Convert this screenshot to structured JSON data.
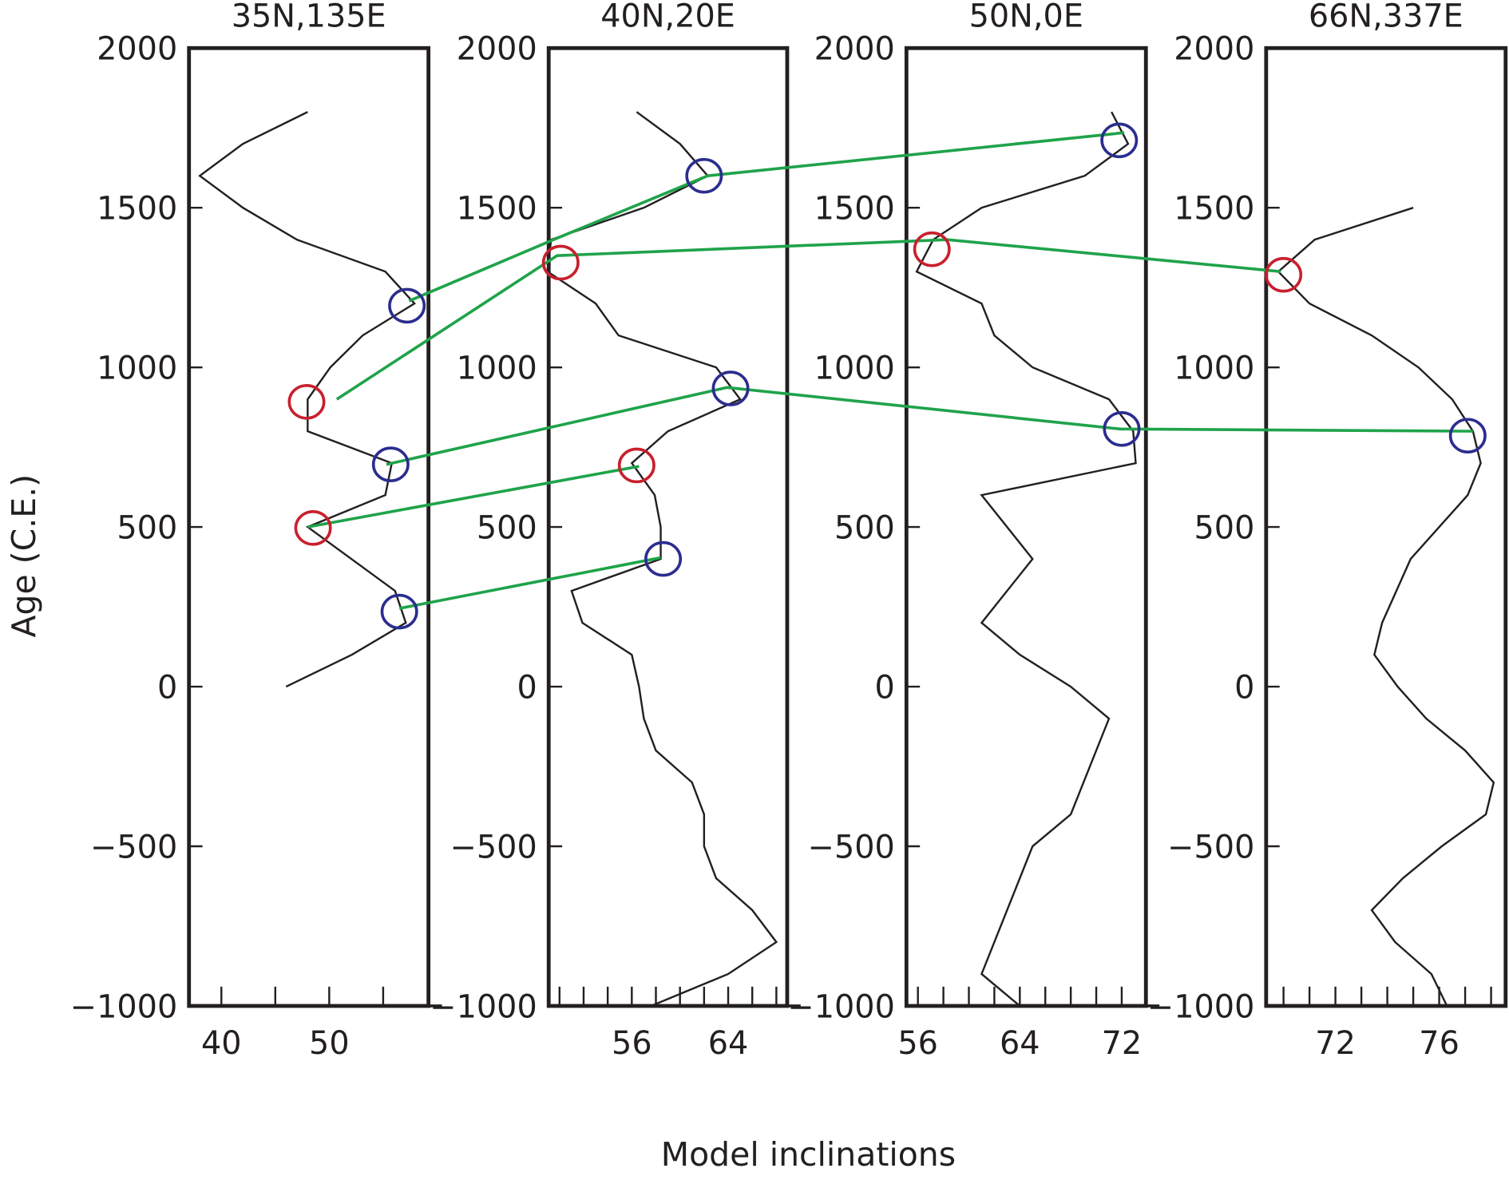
{
  "chart_data": {
    "type": "line",
    "ylabel": "Age (C.E.)",
    "xlabel": "Model inclinations",
    "colors": {
      "curve": "#231f20",
      "connector": "#1fa34a",
      "blue_circle": "#2b2d8f",
      "red_circle": "#c8202e"
    },
    "grid": false,
    "ylim": [
      -1000,
      2000
    ],
    "yticks": [
      2000,
      1500,
      1000,
      500,
      0,
      -500,
      -1000
    ],
    "ytick_labels": [
      "2000",
      "1500",
      "1000",
      "500",
      "0",
      "−500",
      "−1000"
    ],
    "panels": [
      {
        "title": "35N,135E",
        "xlim": [
          37,
          59.2
        ],
        "xticks_minor": [
          40,
          45,
          50,
          55
        ],
        "xtick_labels": [
          {
            "value": 40,
            "label": "40"
          },
          {
            "value": 50,
            "label": "50"
          }
        ],
        "curve": [
          [
            48,
            1800
          ],
          [
            42,
            1700
          ],
          [
            38,
            1600
          ],
          [
            42,
            1500
          ],
          [
            47,
            1400
          ],
          [
            55.2,
            1300
          ],
          [
            57.9,
            1200
          ],
          [
            53.1,
            1100
          ],
          [
            50.1,
            1000
          ],
          [
            48,
            900
          ],
          [
            48,
            800
          ],
          [
            55.8,
            700
          ],
          [
            55.2,
            600
          ],
          [
            48,
            500
          ],
          [
            56.1,
            300
          ],
          [
            57.1,
            200
          ],
          [
            52.1,
            100
          ],
          [
            46,
            0
          ]
        ],
        "blue_circles": [
          [
            57.2,
            1193
          ],
          [
            55.7,
            696
          ],
          [
            56.5,
            235
          ]
        ],
        "red_circles": [
          [
            47.9,
            892
          ],
          [
            48.5,
            497
          ]
        ]
      },
      {
        "title": "40N,20E",
        "xlim": [
          49.1,
          68.9
        ],
        "xticks_minor": [
          50,
          52,
          54,
          56,
          58,
          60,
          62,
          64,
          66,
          68
        ],
        "xtick_labels": [
          {
            "value": 56,
            "label": "56"
          },
          {
            "value": 64,
            "label": "64"
          }
        ],
        "curve": [
          [
            56.4,
            1800
          ],
          [
            60,
            1700
          ],
          [
            62.3,
            1600
          ],
          [
            57,
            1500
          ],
          [
            49.3,
            1400
          ],
          [
            49,
            1300
          ],
          [
            53,
            1200
          ],
          [
            54.9,
            1100
          ],
          [
            63,
            1000
          ],
          [
            65,
            900
          ],
          [
            59,
            800
          ],
          [
            56,
            700
          ],
          [
            57.9,
            600
          ],
          [
            58.4,
            500
          ],
          [
            58.4,
            400
          ],
          [
            51,
            300
          ],
          [
            51.9,
            200
          ],
          [
            56,
            100
          ],
          [
            56.6,
            0
          ],
          [
            57,
            -100
          ],
          [
            58,
            -200
          ],
          [
            61,
            -300
          ],
          [
            62,
            -400
          ],
          [
            62,
            -500
          ],
          [
            63,
            -600
          ],
          [
            66,
            -700
          ],
          [
            68,
            -800
          ],
          [
            64,
            -900
          ],
          [
            57.6,
            -1000
          ]
        ],
        "blue_circles": [
          [
            62,
            1600
          ],
          [
            64.2,
            934
          ],
          [
            58.6,
            400
          ]
        ],
        "red_circles": [
          [
            50.1,
            1328
          ],
          [
            56.4,
            693
          ]
        ]
      },
      {
        "title": "50N,0E",
        "xlim": [
          55.1,
          73.9
        ],
        "xticks_minor": [
          56,
          58,
          60,
          62,
          64,
          66,
          68,
          70,
          72
        ],
        "xtick_labels": [
          {
            "value": 56,
            "label": "56"
          },
          {
            "value": 64,
            "label": "64"
          },
          {
            "value": 72,
            "label": "72"
          }
        ],
        "curve": [
          [
            71.2,
            1800
          ],
          [
            72.5,
            1700
          ],
          [
            69.1,
            1600
          ],
          [
            61,
            1500
          ],
          [
            57.2,
            1400
          ],
          [
            55.9,
            1300
          ],
          [
            61,
            1200
          ],
          [
            62,
            1100
          ],
          [
            65,
            1000
          ],
          [
            71,
            900
          ],
          [
            72.9,
            800
          ],
          [
            73.1,
            700
          ],
          [
            61,
            600
          ],
          [
            65,
            400
          ],
          [
            61,
            200
          ],
          [
            64,
            100
          ],
          [
            68,
            0
          ],
          [
            71,
            -100
          ],
          [
            68,
            -400
          ],
          [
            65,
            -500
          ],
          [
            61,
            -900
          ],
          [
            64,
            -1000
          ]
        ],
        "blue_circles": [
          [
            71.8,
            1711
          ],
          [
            72,
            807
          ]
        ],
        "red_circles": [
          [
            57.1,
            1370
          ]
        ]
      },
      {
        "title": "66N,337E",
        "xlim": [
          69.33,
          78.56
        ],
        "xticks_minor": [
          70,
          71,
          72,
          73,
          74,
          75,
          76,
          77,
          78
        ],
        "xtick_labels": [
          {
            "value": 72,
            "label": "72"
          },
          {
            "value": 76,
            "label": "76"
          }
        ],
        "curve": [
          [
            75,
            1500
          ],
          [
            71.2,
            1400
          ],
          [
            69.8,
            1300
          ],
          [
            71,
            1200
          ],
          [
            73.4,
            1100
          ],
          [
            75.2,
            1000
          ],
          [
            76.5,
            900
          ],
          [
            77.3,
            800
          ],
          [
            77.6,
            700
          ],
          [
            77.1,
            600
          ],
          [
            76,
            500
          ],
          [
            74.9,
            400
          ],
          [
            73.8,
            200
          ],
          [
            73.5,
            100
          ],
          [
            74.4,
            0
          ],
          [
            75.5,
            -100
          ],
          [
            77,
            -200
          ],
          [
            78.1,
            -300
          ],
          [
            77.8,
            -400
          ],
          [
            76.1,
            -500
          ],
          [
            74.6,
            -600
          ],
          [
            73.4,
            -700
          ],
          [
            74.3,
            -800
          ],
          [
            75.7,
            -900
          ],
          [
            76.3,
            -1000
          ]
        ],
        "blue_circles": [
          [
            77.1,
            786
          ]
        ],
        "red_circles": [
          [
            70,
            1290
          ]
        ]
      }
    ],
    "connectors": [
      [
        {
          "panel": 0,
          "x": 57.4,
          "y": 1208
        },
        {
          "panel": 1,
          "x": 49.5,
          "y": 1400
        },
        {
          "panel": 1,
          "x": 62.3,
          "y": 1600
        },
        {
          "panel": 2,
          "x": 72.2,
          "y": 1735
        }
      ],
      [
        {
          "panel": 0,
          "x": 50.7,
          "y": 900
        },
        {
          "panel": 1,
          "x": 49.8,
          "y": 1350
        },
        {
          "panel": 2,
          "x": 58.3,
          "y": 1400
        },
        {
          "panel": 3,
          "x": 69.9,
          "y": 1300
        }
      ],
      [
        {
          "panel": 0,
          "x": 55.3,
          "y": 696
        },
        {
          "panel": 1,
          "x": 63.9,
          "y": 937
        },
        {
          "panel": 2,
          "x": 71.9,
          "y": 807
        },
        {
          "panel": 3,
          "x": 77.3,
          "y": 800
        }
      ],
      [
        {
          "panel": 0,
          "x": 48.0,
          "y": 500
        },
        {
          "panel": 1,
          "x": 56.6,
          "y": 690
        }
      ],
      [
        {
          "panel": 0,
          "x": 56.5,
          "y": 245
        },
        {
          "panel": 1,
          "x": 58.4,
          "y": 404
        }
      ]
    ]
  }
}
